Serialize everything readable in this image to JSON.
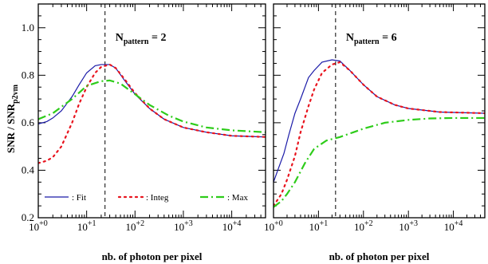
{
  "shared_ylabel": {
    "main": "SNR  /  SNR",
    "sub": "p2vm"
  },
  "colors": {
    "Fit": "#1a1aa8",
    "Integ": "#e8141e",
    "Max": "#2ecc1a",
    "frame": "#000000",
    "vline": "#000000"
  },
  "legend_entries": [
    {
      "name": "Fit",
      "label": ": Fit",
      "style": "solid"
    },
    {
      "name": "Integ",
      "label": ": Integ",
      "style": "dotted"
    },
    {
      "name": "Max",
      "label": ": Max",
      "style": "dashdot"
    }
  ],
  "chart_data": [
    {
      "type": "line",
      "xscale": "log",
      "xlim": [
        1,
        50000
      ],
      "ylim": [
        0.2,
        1.1
      ],
      "xticks": [
        {
          "value": 1,
          "base": "10",
          "exp": "+0"
        },
        {
          "value": 10,
          "base": "10",
          "exp": "+1"
        },
        {
          "value": 100,
          "base": "10",
          "exp": "+2"
        },
        {
          "value": 1000,
          "base": "10",
          "exp": "+3"
        },
        {
          "value": 10000,
          "base": "10",
          "exp": "+4"
        }
      ],
      "yticks": [
        0.2,
        0.4,
        0.6,
        0.8,
        1.0
      ],
      "ytick_labels": [
        "0.2",
        "0.4",
        "0.6",
        "0.8",
        "1.0"
      ],
      "xlabel": "nb. of photon per pixel",
      "annotation": {
        "main": "N",
        "sub": "pattern",
        "rest": " = 2"
      },
      "vline_x": 24,
      "legend": "bottom-left",
      "series": [
        {
          "name": "Fit",
          "points": [
            [
              1,
              0.595
            ],
            [
              1.5,
              0.605
            ],
            [
              2,
              0.62
            ],
            [
              3,
              0.65
            ],
            [
              5,
              0.71
            ],
            [
              7,
              0.76
            ],
            [
              10,
              0.81
            ],
            [
              15,
              0.84
            ],
            [
              20,
              0.845
            ],
            [
              30,
              0.845
            ],
            [
              40,
              0.83
            ],
            [
              60,
              0.78
            ],
            [
              100,
              0.72
            ],
            [
              200,
              0.66
            ],
            [
              400,
              0.615
            ],
            [
              1000,
              0.58
            ],
            [
              3000,
              0.56
            ],
            [
              10000,
              0.545
            ],
            [
              50000,
              0.54
            ]
          ]
        },
        {
          "name": "Integ",
          "points": [
            [
              1,
              0.43
            ],
            [
              1.5,
              0.44
            ],
            [
              2,
              0.455
            ],
            [
              3,
              0.5
            ],
            [
              5,
              0.6
            ],
            [
              7,
              0.68
            ],
            [
              10,
              0.75
            ],
            [
              15,
              0.81
            ],
            [
              20,
              0.835
            ],
            [
              30,
              0.845
            ],
            [
              40,
              0.83
            ],
            [
              60,
              0.785
            ],
            [
              100,
              0.725
            ],
            [
              200,
              0.66
            ],
            [
              400,
              0.615
            ],
            [
              1000,
              0.58
            ],
            [
              3000,
              0.56
            ],
            [
              10000,
              0.545
            ],
            [
              50000,
              0.54
            ]
          ]
        },
        {
          "name": "Max",
          "points": [
            [
              1,
              0.615
            ],
            [
              2,
              0.64
            ],
            [
              5,
              0.7
            ],
            [
              10,
              0.755
            ],
            [
              20,
              0.775
            ],
            [
              30,
              0.778
            ],
            [
              50,
              0.765
            ],
            [
              100,
              0.72
            ],
            [
              200,
              0.675
            ],
            [
              500,
              0.63
            ],
            [
              1000,
              0.605
            ],
            [
              3000,
              0.58
            ],
            [
              10000,
              0.568
            ],
            [
              50000,
              0.56
            ]
          ]
        }
      ]
    },
    {
      "type": "line",
      "xscale": "log",
      "xlim": [
        1,
        50000
      ],
      "ylim": [
        0.2,
        1.1
      ],
      "xticks": [
        {
          "value": 1,
          "base": "10",
          "exp": "+0"
        },
        {
          "value": 10,
          "base": "10",
          "exp": "+1"
        },
        {
          "value": 100,
          "base": "10",
          "exp": "+2"
        },
        {
          "value": 1000,
          "base": "10",
          "exp": "+3"
        },
        {
          "value": 10000,
          "base": "10",
          "exp": "+4"
        }
      ],
      "yticks": [
        0.2,
        0.4,
        0.6,
        0.8,
        1.0
      ],
      "ytick_labels": [],
      "xlabel": "nb. of photon per pixel",
      "annotation": {
        "main": "N",
        "sub": "pattern",
        "rest": " = 6"
      },
      "vline_x": 24,
      "legend": "none",
      "series": [
        {
          "name": "Fit",
          "points": [
            [
              1,
              0.35
            ],
            [
              1.3,
              0.41
            ],
            [
              1.7,
              0.47
            ],
            [
              2.2,
              0.55
            ],
            [
              3,
              0.64
            ],
            [
              4,
              0.7
            ],
            [
              6,
              0.79
            ],
            [
              8,
              0.82
            ],
            [
              12,
              0.855
            ],
            [
              20,
              0.865
            ],
            [
              30,
              0.86
            ],
            [
              50,
              0.82
            ],
            [
              100,
              0.76
            ],
            [
              200,
              0.71
            ],
            [
              500,
              0.675
            ],
            [
              1000,
              0.66
            ],
            [
              5000,
              0.645
            ],
            [
              50000,
              0.64
            ]
          ]
        },
        {
          "name": "Integ",
          "points": [
            [
              1,
              0.25
            ],
            [
              1.5,
              0.3
            ],
            [
              2,
              0.36
            ],
            [
              3,
              0.46
            ],
            [
              4,
              0.56
            ],
            [
              6,
              0.67
            ],
            [
              8,
              0.74
            ],
            [
              12,
              0.81
            ],
            [
              20,
              0.845
            ],
            [
              30,
              0.855
            ],
            [
              50,
              0.82
            ],
            [
              100,
              0.76
            ],
            [
              200,
              0.71
            ],
            [
              500,
              0.675
            ],
            [
              1000,
              0.66
            ],
            [
              5000,
              0.645
            ],
            [
              50000,
              0.64
            ]
          ]
        },
        {
          "name": "Max",
          "points": [
            [
              1,
              0.245
            ],
            [
              1.5,
              0.27
            ],
            [
              2,
              0.3
            ],
            [
              3,
              0.35
            ],
            [
              5,
              0.43
            ],
            [
              8,
              0.49
            ],
            [
              15,
              0.525
            ],
            [
              30,
              0.54
            ],
            [
              60,
              0.56
            ],
            [
              100,
              0.575
            ],
            [
              300,
              0.6
            ],
            [
              1000,
              0.612
            ],
            [
              3000,
              0.618
            ],
            [
              10000,
              0.62
            ],
            [
              50000,
              0.62
            ]
          ]
        }
      ]
    }
  ]
}
